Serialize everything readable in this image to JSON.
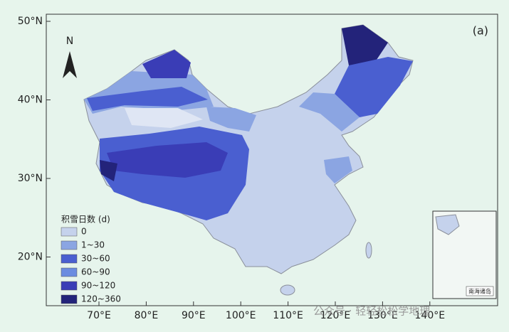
{
  "map": {
    "panel_label": "(a)",
    "north": "N",
    "lat_labels": [
      "50°N",
      "40°N",
      "30°N",
      "20°N"
    ],
    "lon_labels": [
      "70°E",
      "80°E",
      "90°E",
      "100°E",
      "110°E",
      "120°E",
      "130°E",
      "140°E"
    ],
    "legend": {
      "title": "积雪日数 (d)",
      "items": [
        {
          "label": "0",
          "color": "#c5d2ec"
        },
        {
          "label": "1~30",
          "color": "#8ba5e2"
        },
        {
          "label": "30~60",
          "color": "#4a5fd0"
        },
        {
          "label": "60~90",
          "color": "#6b8ce0"
        },
        {
          "label": "90~120",
          "color": "#3a3db6"
        },
        {
          "label": "120~360",
          "color": "#23237a"
        }
      ]
    },
    "inset_label": "南海诸岛",
    "watermark": "公众号 · 轻轻松松学地理"
  }
}
